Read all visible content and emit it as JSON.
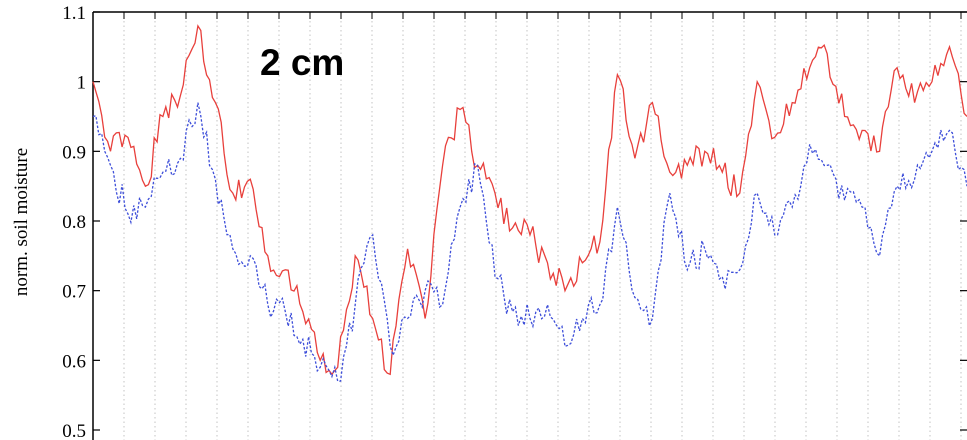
{
  "chart_data": {
    "type": "line",
    "ylabel": "norm. soil moisture",
    "annotation": "2 cm",
    "yticks": [
      "0.5",
      "0.6",
      "0.7",
      "0.8",
      "0.9",
      "1",
      "1.1"
    ],
    "ylim": [
      0.5,
      1.1
    ],
    "xlim": [
      0,
      100
    ],
    "grid": {
      "x": "dotted-vertical",
      "y": false
    },
    "series": [
      {
        "color": "#e8403c",
        "style": "solid",
        "x": [
          0,
          2,
          4,
          6,
          8,
          10,
          12,
          14,
          16,
          18,
          20,
          22,
          24,
          26,
          28,
          30,
          32,
          34,
          36,
          38,
          40,
          42,
          44,
          46,
          48,
          50,
          52,
          54,
          56,
          58,
          60,
          62,
          64,
          66,
          68,
          70,
          72,
          74,
          76,
          78,
          80,
          82,
          84,
          86,
          88,
          90,
          92,
          94,
          96,
          98,
          100
        ],
        "values": [
          1.0,
          0.9,
          0.92,
          0.85,
          0.95,
          0.98,
          1.08,
          0.97,
          0.84,
          0.86,
          0.75,
          0.73,
          0.67,
          0.6,
          0.59,
          0.75,
          0.66,
          0.58,
          0.76,
          0.66,
          0.88,
          0.96,
          0.88,
          0.84,
          0.79,
          0.78,
          0.74,
          0.7,
          0.74,
          0.77,
          1.01,
          0.89,
          0.97,
          0.87,
          0.88,
          0.9,
          0.87,
          0.84,
          1.0,
          0.92,
          0.97,
          1.02,
          1.04,
          0.95,
          0.93,
          0.9,
          1.02,
          0.97,
          1.0,
          1.05,
          0.95
        ]
      },
      {
        "color": "#3d4ed9",
        "style": "dotted",
        "x": [
          0,
          2,
          4,
          6,
          8,
          10,
          12,
          14,
          16,
          18,
          20,
          22,
          24,
          26,
          28,
          30,
          32,
          34,
          36,
          38,
          40,
          42,
          44,
          46,
          48,
          50,
          52,
          54,
          56,
          58,
          60,
          62,
          64,
          66,
          68,
          70,
          72,
          74,
          76,
          78,
          80,
          82,
          84,
          86,
          88,
          90,
          92,
          94,
          96,
          98,
          100
        ],
        "values": [
          0.95,
          0.88,
          0.81,
          0.82,
          0.87,
          0.89,
          0.97,
          0.86,
          0.76,
          0.75,
          0.68,
          0.67,
          0.63,
          0.59,
          0.57,
          0.68,
          0.78,
          0.62,
          0.66,
          0.7,
          0.68,
          0.82,
          0.88,
          0.72,
          0.67,
          0.66,
          0.68,
          0.62,
          0.66,
          0.68,
          0.82,
          0.69,
          0.66,
          0.84,
          0.73,
          0.76,
          0.72,
          0.73,
          0.84,
          0.78,
          0.82,
          0.91,
          0.88,
          0.83,
          0.82,
          0.75,
          0.85,
          0.86,
          0.9,
          0.93,
          0.85
        ]
      }
    ]
  }
}
